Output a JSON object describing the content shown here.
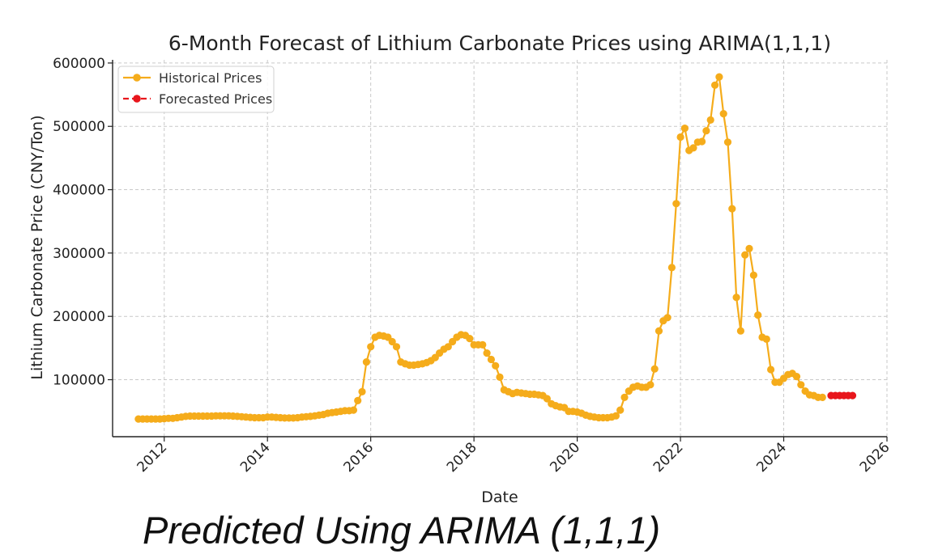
{
  "chart_data": {
    "type": "line",
    "title": "6-Month Forecast of Lithium Carbonate Prices using ARIMA(1,1,1)",
    "xlabel": "Date",
    "ylabel": "Lithium Carbonate Price (CNY/Ton)",
    "xlim": [
      2011.0,
      2026.0
    ],
    "ylim": [
      10000,
      605000
    ],
    "xticks": [
      "2012",
      "2014",
      "2016",
      "2018",
      "2020",
      "2022",
      "2024",
      "2026"
    ],
    "yticks": [
      "100000",
      "200000",
      "300000",
      "400000",
      "500000",
      "600000"
    ],
    "grid": true,
    "legend": "top-left",
    "colors": {
      "historical": "#f5ac1b",
      "forecast": "#e8161c"
    },
    "series": [
      {
        "name": "Historical Prices",
        "style": "solid-line-with-markers",
        "x": [
          "2011-07",
          "2011-08",
          "2011-09",
          "2011-10",
          "2011-11",
          "2011-12",
          "2012-01",
          "2012-02",
          "2012-03",
          "2012-04",
          "2012-05",
          "2012-06",
          "2012-07",
          "2012-08",
          "2012-09",
          "2012-10",
          "2012-11",
          "2012-12",
          "2013-01",
          "2013-02",
          "2013-03",
          "2013-04",
          "2013-05",
          "2013-06",
          "2013-07",
          "2013-08",
          "2013-09",
          "2013-10",
          "2013-11",
          "2013-12",
          "2014-01",
          "2014-02",
          "2014-03",
          "2014-04",
          "2014-05",
          "2014-06",
          "2014-07",
          "2014-08",
          "2014-09",
          "2014-10",
          "2014-11",
          "2014-12",
          "2015-01",
          "2015-02",
          "2015-03",
          "2015-04",
          "2015-05",
          "2015-06",
          "2015-07",
          "2015-08",
          "2015-09",
          "2015-10",
          "2015-11",
          "2015-12",
          "2016-01",
          "2016-02",
          "2016-03",
          "2016-04",
          "2016-05",
          "2016-06",
          "2016-07",
          "2016-08",
          "2016-09",
          "2016-10",
          "2016-11",
          "2016-12",
          "2017-01",
          "2017-02",
          "2017-03",
          "2017-04",
          "2017-05",
          "2017-06",
          "2017-07",
          "2017-08",
          "2017-09",
          "2017-10",
          "2017-11",
          "2017-12",
          "2018-01",
          "2018-02",
          "2018-03",
          "2018-04",
          "2018-05",
          "2018-06",
          "2018-07",
          "2018-08",
          "2018-09",
          "2018-10",
          "2018-11",
          "2018-12",
          "2019-01",
          "2019-02",
          "2019-03",
          "2019-04",
          "2019-05",
          "2019-06",
          "2019-07",
          "2019-08",
          "2019-09",
          "2019-10",
          "2019-11",
          "2019-12",
          "2020-01",
          "2020-02",
          "2020-03",
          "2020-04",
          "2020-05",
          "2020-06",
          "2020-07",
          "2020-08",
          "2020-09",
          "2020-10",
          "2020-11",
          "2020-12",
          "2021-01",
          "2021-02",
          "2021-03",
          "2021-04",
          "2021-05",
          "2021-06",
          "2021-07",
          "2021-08",
          "2021-09",
          "2021-10",
          "2021-11",
          "2021-12",
          "2022-01",
          "2022-02",
          "2022-03",
          "2022-04",
          "2022-05",
          "2022-06",
          "2022-07",
          "2022-08",
          "2022-09",
          "2022-10",
          "2022-11",
          "2022-12",
          "2023-01",
          "2023-02",
          "2023-03",
          "2023-04",
          "2023-05",
          "2023-06",
          "2023-07",
          "2023-08",
          "2023-09",
          "2023-10",
          "2023-11",
          "2023-12",
          "2024-01",
          "2024-02",
          "2024-03",
          "2024-04",
          "2024-05",
          "2024-06",
          "2024-07",
          "2024-08",
          "2024-09",
          "2024-10"
        ],
        "values": [
          38000,
          38000,
          38000,
          38000,
          38000,
          38000,
          38500,
          39000,
          39000,
          40000,
          41000,
          42000,
          42500,
          42500,
          42500,
          42500,
          42500,
          42500,
          43000,
          43000,
          43000,
          43000,
          42500,
          42000,
          41500,
          41000,
          40500,
          40000,
          40000,
          40000,
          41000,
          41000,
          40500,
          40000,
          39500,
          39500,
          39500,
          40000,
          41000,
          41500,
          42000,
          43000,
          44000,
          45000,
          47000,
          48000,
          49000,
          50000,
          51000,
          51000,
          52000,
          67000,
          81000,
          128000,
          152000,
          167000,
          170000,
          169000,
          167000,
          160000,
          152000,
          128000,
          125000,
          123000,
          123000,
          124000,
          125000,
          127000,
          130000,
          135000,
          142000,
          148000,
          152000,
          160000,
          167000,
          171000,
          170000,
          165000,
          155000,
          155000,
          155000,
          142000,
          132000,
          122000,
          104000,
          84000,
          81000,
          78000,
          80000,
          79000,
          78000,
          77000,
          77000,
          76000,
          75000,
          70000,
          62000,
          59000,
          57000,
          56000,
          50000,
          50000,
          49000,
          47000,
          44000,
          42000,
          41000,
          40000,
          40000,
          40000,
          41000,
          43000,
          52000,
          72000,
          82000,
          88000,
          90000,
          88000,
          88000,
          92000,
          117000,
          177000,
          193000,
          198000,
          277000,
          378000,
          483000,
          497000,
          462000,
          466000,
          475000,
          476000,
          493000,
          510000,
          565000,
          578000,
          520000,
          475000,
          370000,
          230000,
          177000,
          297000,
          307000,
          265000,
          202000,
          167000,
          164000,
          116000,
          96000,
          96000,
          102000,
          108000,
          110000,
          105000,
          92000,
          82000,
          76000,
          75000,
          72000,
          72000
        ]
      },
      {
        "name": "Forecasted Prices",
        "style": "dashed-line-with-markers",
        "x": [
          "2024-12",
          "2025-01",
          "2025-02",
          "2025-03",
          "2025-04",
          "2025-05"
        ],
        "values": [
          75000,
          75000,
          75000,
          75000,
          75000,
          75000
        ]
      }
    ]
  },
  "caption": "Predicted Using ARIMA (1,1,1)"
}
